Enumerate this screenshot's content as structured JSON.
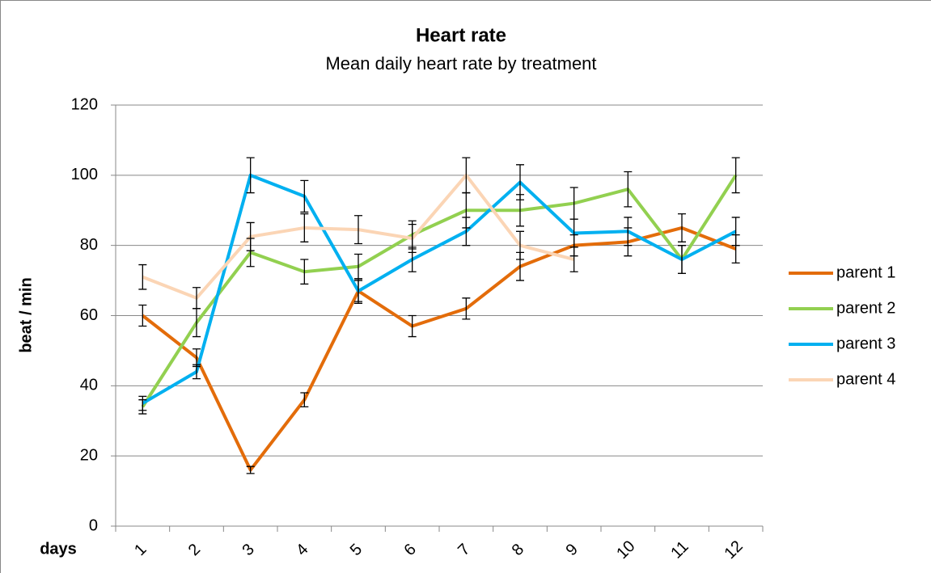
{
  "chart_data": {
    "type": "line",
    "title": "Heart rate",
    "subtitle": "Mean daily heart rate by treatment",
    "y_label": "beat / min",
    "x_label": "days",
    "categories": [
      "1",
      "2",
      "3",
      "4",
      "5",
      "6",
      "7",
      "8",
      "9",
      "10",
      "11",
      "12"
    ],
    "ylim": [
      0,
      120
    ],
    "yticks": [
      0,
      20,
      40,
      60,
      80,
      100,
      120
    ],
    "grid": true,
    "legend": "right",
    "series": [
      {
        "name": "parent 1",
        "color": "#e36c0a",
        "values": [
          60,
          48,
          16,
          36,
          67,
          57,
          62,
          74,
          80,
          81,
          85,
          79
        ],
        "errors": [
          3,
          2.5,
          1,
          2,
          3.5,
          3,
          3,
          4,
          3,
          4,
          4,
          4
        ]
      },
      {
        "name": "parent 2",
        "color": "#92d050",
        "values": [
          34,
          58,
          78,
          72.5,
          74,
          83,
          90,
          90,
          92,
          96,
          76,
          100
        ],
        "errors": [
          2,
          4,
          4,
          3.5,
          3.5,
          4,
          5,
          4.5,
          4.5,
          5,
          4,
          5
        ]
      },
      {
        "name": "parent 3",
        "color": "#00b0f0",
        "values": [
          35,
          44,
          100,
          94,
          67,
          76,
          84,
          98,
          83.5,
          84,
          76,
          84
        ],
        "errors": [
          2,
          2,
          5,
          4.5,
          3,
          3.5,
          4,
          5,
          4,
          4,
          4,
          4
        ]
      },
      {
        "name": "parent 4",
        "color": "#fbd5b5",
        "values": [
          71,
          65,
          82.5,
          85,
          84.5,
          82,
          100,
          80,
          76,
          null,
          null,
          null
        ],
        "errors": [
          3.5,
          3,
          4,
          4,
          4,
          4,
          5,
          4,
          3.5,
          null,
          null,
          null
        ]
      }
    ]
  }
}
